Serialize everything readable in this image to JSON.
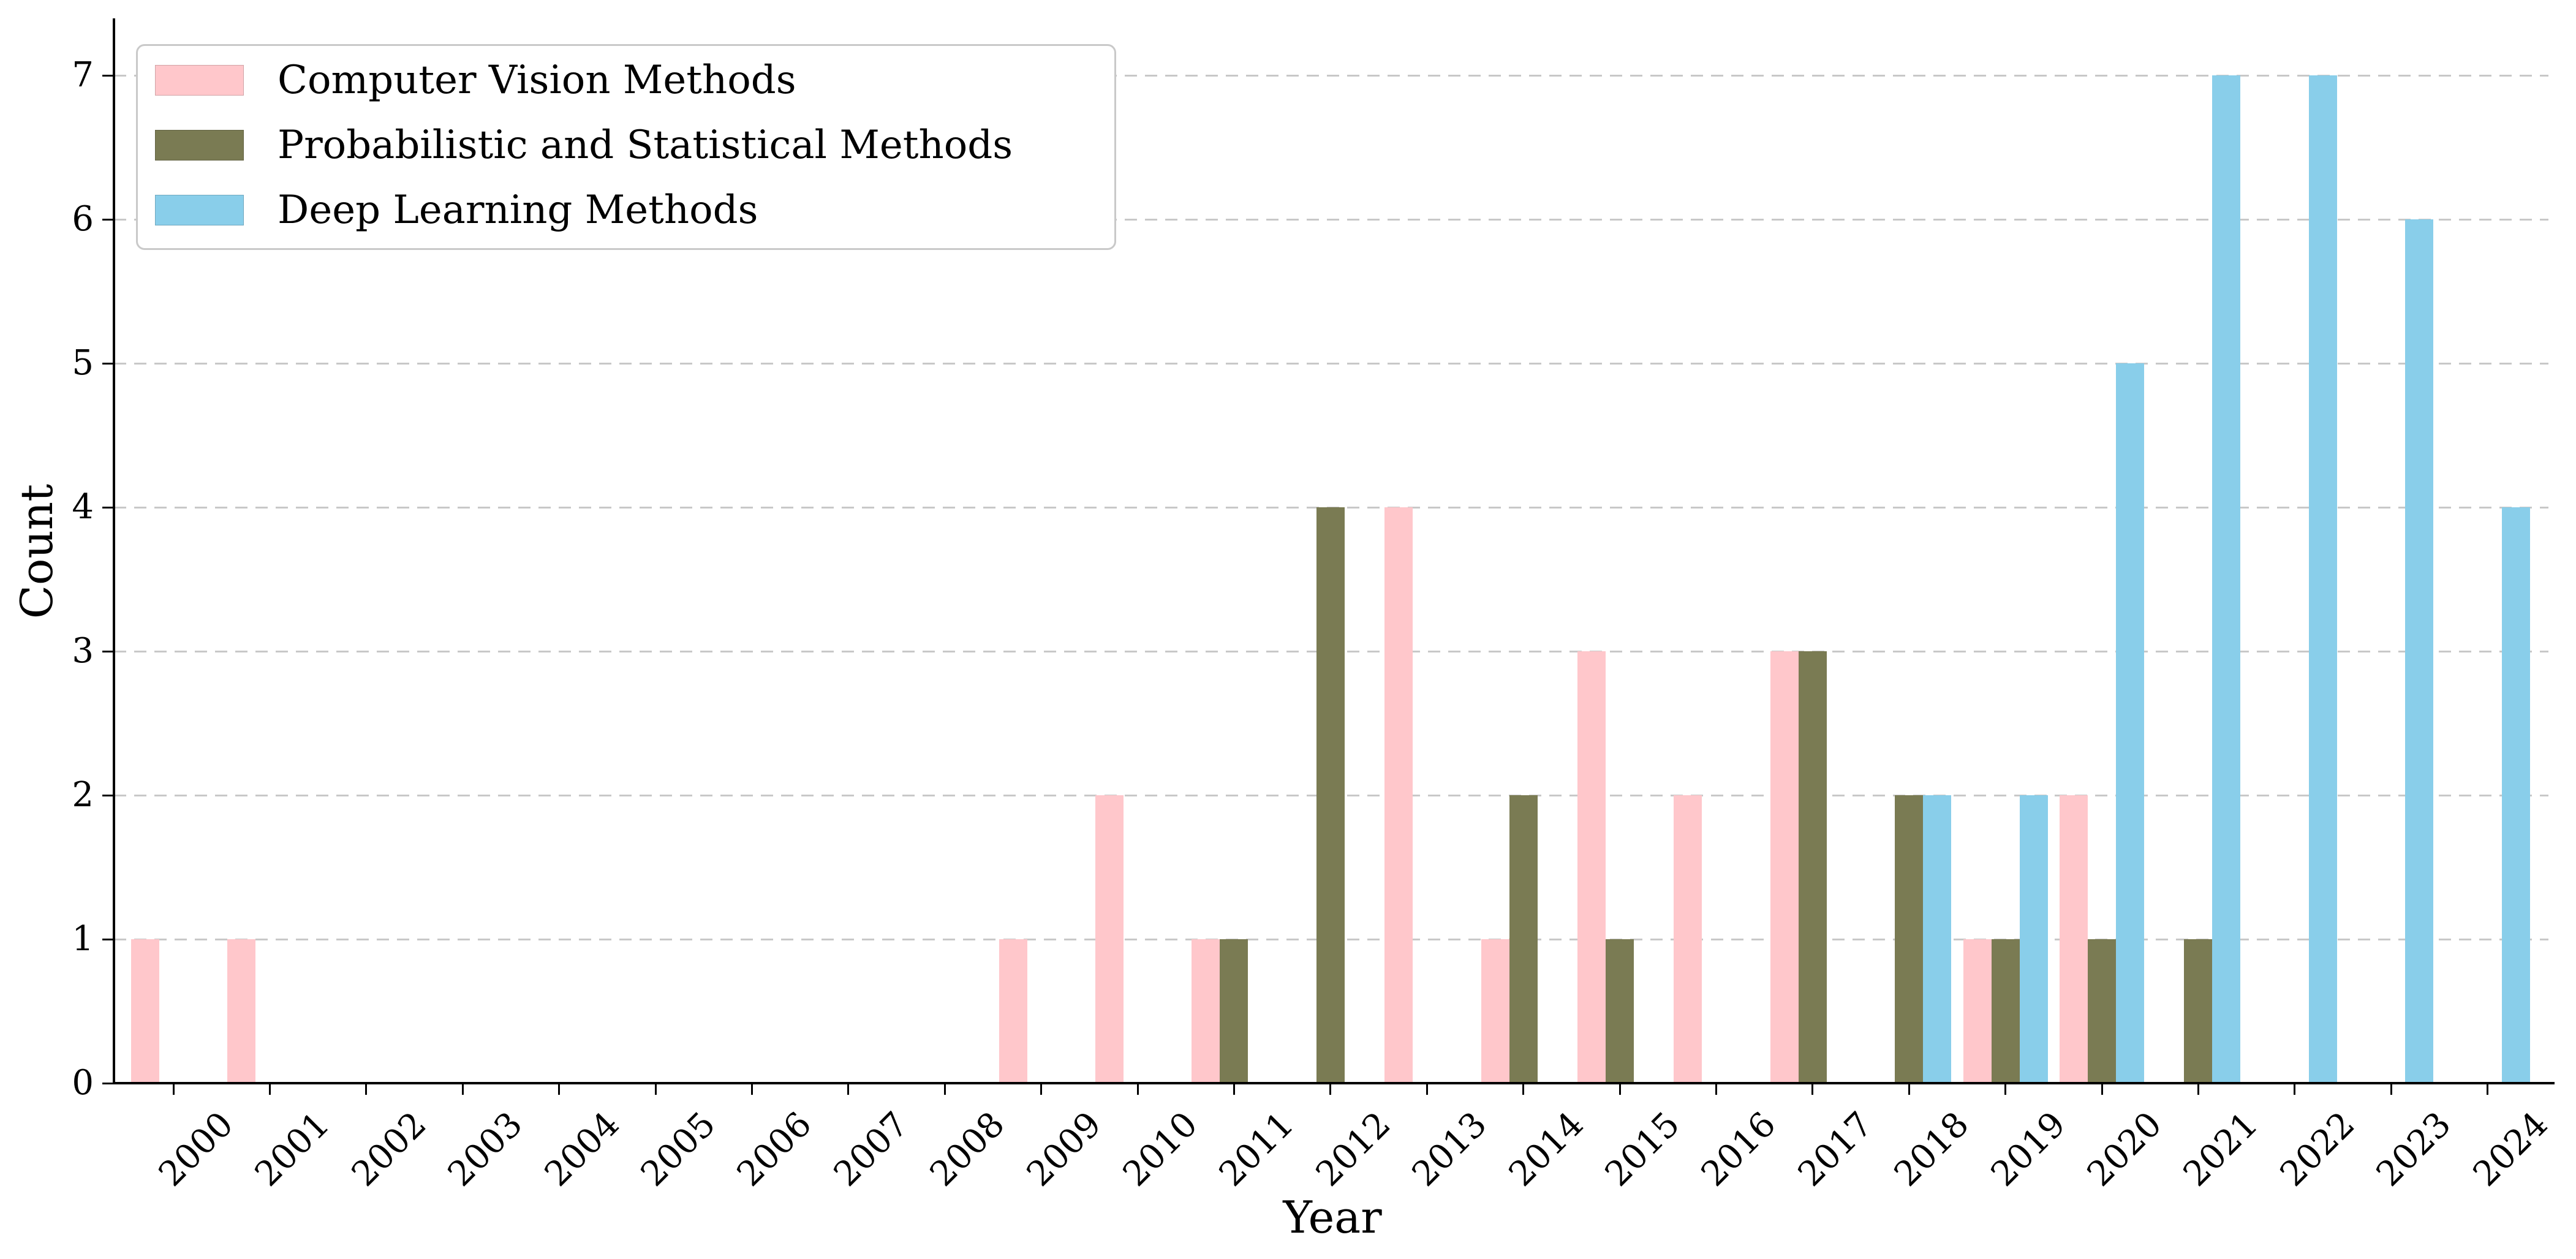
{
  "axes": {
    "xlabel": "Year",
    "ylabel": "Count"
  },
  "styles": {
    "background": "#ffffff",
    "grid_color": "#c8c8c8",
    "axis_color": "#000000",
    "legend_border": "#c9c9c9"
  },
  "chart_data": {
    "type": "bar",
    "title": "",
    "xlabel": "Year",
    "ylabel": "Count",
    "categories": [
      "2000",
      "2001",
      "2002",
      "2003",
      "2004",
      "2005",
      "2006",
      "2007",
      "2008",
      "2009",
      "2010",
      "2011",
      "2012",
      "2013",
      "2014",
      "2015",
      "2016",
      "2017",
      "2018",
      "2019",
      "2020",
      "2021",
      "2022",
      "2023",
      "2024"
    ],
    "series": [
      {
        "name": "Computer Vision Methods",
        "color": "#FFC7CB",
        "values": [
          1,
          1,
          0,
          0,
          0,
          0,
          0,
          0,
          0,
          1,
          2,
          1,
          0,
          4,
          1,
          3,
          2,
          3,
          0,
          1,
          2,
          0,
          0,
          0,
          0
        ]
      },
      {
        "name": "Probabilistic and Statistical Methods",
        "color": "#7A7B53",
        "values": [
          0,
          0,
          0,
          0,
          0,
          0,
          0,
          0,
          0,
          0,
          0,
          1,
          4,
          0,
          2,
          1,
          0,
          3,
          2,
          1,
          1,
          1,
          0,
          0,
          0
        ]
      },
      {
        "name": "Deep Learning Methods",
        "color": "#89CEEA",
        "values": [
          0,
          0,
          0,
          0,
          0,
          0,
          0,
          0,
          0,
          0,
          0,
          0,
          0,
          0,
          0,
          0,
          0,
          0,
          2,
          2,
          5,
          7,
          7,
          6,
          4
        ]
      }
    ],
    "ylim": [
      0,
      7.4
    ],
    "yticks": [
      0,
      1,
      2,
      3,
      4,
      5,
      6,
      7
    ],
    "grid": "horizontal-dashed",
    "legend_position": "upper-left"
  }
}
